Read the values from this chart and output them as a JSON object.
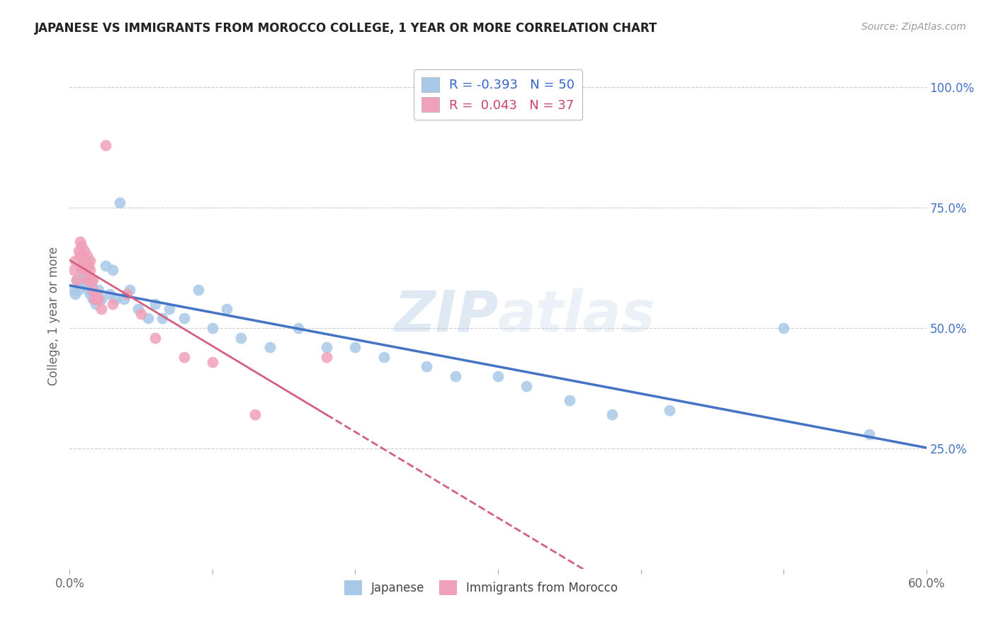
{
  "title": "JAPANESE VS IMMIGRANTS FROM MOROCCO COLLEGE, 1 YEAR OR MORE CORRELATION CHART",
  "source": "Source: ZipAtlas.com",
  "ylabel": "College, 1 year or more",
  "watermark": "ZIPatlas",
  "xlim": [
    0.0,
    0.6
  ],
  "ylim": [
    0.0,
    1.05
  ],
  "xticks": [
    0.0,
    0.1,
    0.2,
    0.3,
    0.4,
    0.5,
    0.6
  ],
  "xticklabels": [
    "0.0%",
    "",
    "",
    "",
    "",
    "",
    "60.0%"
  ],
  "yticks_right": [
    0.0,
    0.25,
    0.5,
    0.75,
    1.0
  ],
  "yticklabels_right": [
    "",
    "25.0%",
    "50.0%",
    "75.0%",
    "100.0%"
  ],
  "blue_color": "#a8c8e8",
  "pink_color": "#f0a0b8",
  "blue_line_color": "#4472c4",
  "pink_line_color": "#d46080",
  "grid_color": "#cccccc",
  "background_color": "#ffffff",
  "japanese_x": [
    0.003,
    0.004,
    0.005,
    0.006,
    0.007,
    0.008,
    0.009,
    0.01,
    0.011,
    0.012,
    0.013,
    0.014,
    0.015,
    0.016,
    0.017,
    0.018,
    0.019,
    0.02,
    0.022,
    0.025,
    0.028,
    0.03,
    0.032,
    0.035,
    0.038,
    0.042,
    0.048,
    0.055,
    0.06,
    0.065,
    0.07,
    0.08,
    0.09,
    0.1,
    0.11,
    0.12,
    0.14,
    0.16,
    0.18,
    0.2,
    0.22,
    0.25,
    0.27,
    0.3,
    0.32,
    0.35,
    0.38,
    0.42,
    0.5,
    0.56
  ],
  "japanese_y": [
    0.58,
    0.57,
    0.6,
    0.58,
    0.59,
    0.62,
    0.6,
    0.61,
    0.59,
    0.6,
    0.58,
    0.57,
    0.59,
    0.56,
    0.57,
    0.55,
    0.56,
    0.58,
    0.56,
    0.63,
    0.57,
    0.62,
    0.56,
    0.76,
    0.56,
    0.58,
    0.54,
    0.52,
    0.55,
    0.52,
    0.54,
    0.52,
    0.58,
    0.5,
    0.54,
    0.48,
    0.46,
    0.5,
    0.46,
    0.46,
    0.44,
    0.42,
    0.4,
    0.4,
    0.38,
    0.35,
    0.32,
    0.33,
    0.5,
    0.28
  ],
  "morocco_x": [
    0.003,
    0.004,
    0.005,
    0.006,
    0.007,
    0.007,
    0.008,
    0.008,
    0.009,
    0.01,
    0.01,
    0.011,
    0.012,
    0.012,
    0.013,
    0.013,
    0.014,
    0.014,
    0.015,
    0.016,
    0.016,
    0.017,
    0.018,
    0.019,
    0.02,
    0.022,
    0.025,
    0.03,
    0.04,
    0.05,
    0.06,
    0.08,
    0.1,
    0.13,
    0.18
  ],
  "morocco_y": [
    0.62,
    0.64,
    0.6,
    0.66,
    0.65,
    0.68,
    0.63,
    0.67,
    0.62,
    0.64,
    0.66,
    0.62,
    0.6,
    0.65,
    0.6,
    0.63,
    0.62,
    0.64,
    0.6,
    0.6,
    0.58,
    0.56,
    0.57,
    0.56,
    0.56,
    0.54,
    0.88,
    0.55,
    0.57,
    0.53,
    0.48,
    0.44,
    0.43,
    0.32,
    0.44
  ]
}
